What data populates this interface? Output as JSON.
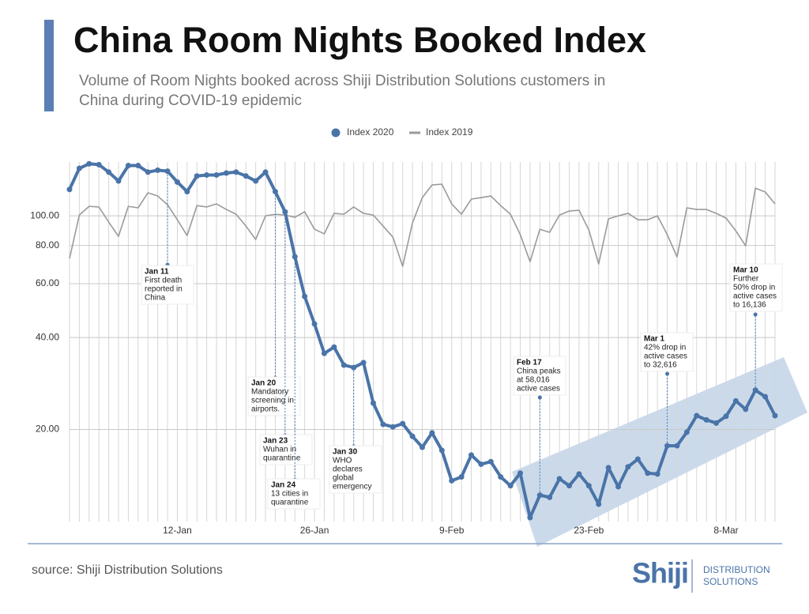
{
  "chart_data": {
    "type": "line",
    "title": "China Room Nights Booked Index",
    "subtitle": [
      "Volume of Room Nights booked across Shiji Distribution Solutions customers in",
      "China during COVID-19 epidemic"
    ],
    "categories": [
      null,
      null,
      null,
      null,
      null,
      null,
      null,
      null,
      null,
      null,
      null,
      "12-Jan",
      null,
      null,
      null,
      null,
      null,
      null,
      null,
      null,
      null,
      null,
      null,
      null,
      null,
      "26-Jan",
      null,
      null,
      null,
      null,
      null,
      null,
      null,
      null,
      null,
      null,
      null,
      null,
      null,
      "9-Feb",
      null,
      null,
      null,
      null,
      null,
      null,
      null,
      null,
      null,
      null,
      null,
      null,
      null,
      "23-Feb",
      null,
      null,
      null,
      null,
      null,
      null,
      null,
      null,
      null,
      null,
      null,
      null,
      null,
      "8-Mar",
      null,
      null,
      null,
      null,
      null
    ],
    "series": [
      {
        "name": "Index 2020",
        "color": "#4a74a8",
        "markers": true,
        "values": [
          122,
          143,
          148,
          147,
          139,
          130,
          146,
          146,
          139,
          141,
          140,
          129,
          120,
          135,
          136,
          136,
          138,
          139,
          135,
          130,
          139,
          120,
          103,
          73.5,
          54.5,
          44.3,
          35.5,
          37.2,
          32.5,
          31.9,
          33.1,
          24.4,
          20.8,
          20.4,
          20.9,
          19.0,
          17.5,
          19.5,
          17.1,
          13.6,
          14.0,
          16.5,
          15.4,
          15.7,
          14.0,
          13.1,
          14.4,
          10.3,
          12.2,
          12.0,
          13.8,
          13.1,
          14.3,
          13.1,
          11.4,
          15.0,
          13.0,
          15.1,
          16.0,
          14.4,
          14.3,
          17.7,
          17.7,
          19.6,
          22.2,
          21.5,
          21.0,
          22.1,
          24.8,
          23.3,
          26.9,
          25.6,
          22.2
        ]
      },
      {
        "name": "Index 2019",
        "color": "#9a9a9a",
        "markers": false,
        "values": [
          72.5,
          100.6,
          107.4,
          106.9,
          95.4,
          85.7,
          107.4,
          106.2,
          118.9,
          116.1,
          108.7,
          97.1,
          86.2,
          108.0,
          106.9,
          109.4,
          104.9,
          101.2,
          92.6,
          83.7,
          100.0,
          101.2,
          100.6,
          98.9,
          103.1,
          90.4,
          87.3,
          101.9,
          101.2,
          106.9,
          101.9,
          100.6,
          92.6,
          85.2,
          68.4,
          94.8,
          114.7,
          126.2,
          126.9,
          109.4,
          101.2,
          113.4,
          114.7,
          116.1,
          108.0,
          101.2,
          86.8,
          70.8,
          90.4,
          88.3,
          100.6,
          103.7,
          104.3,
          89.9,
          69.6,
          97.7,
          100.0,
          101.9,
          97.1,
          97.1,
          100.0,
          86.8,
          73.4,
          106.2,
          104.9,
          104.9,
          101.9,
          98.3,
          89.3,
          79.8,
          123.2,
          119.6,
          109.4
        ]
      }
    ],
    "ylim": [
      10,
      150
    ],
    "yticks": [
      {
        "value": 20,
        "label": "20.00"
      },
      {
        "value": 40,
        "label": "40.00"
      },
      {
        "value": 60,
        "label": "60.00"
      },
      {
        "value": 80,
        "label": "80.00"
      },
      {
        "value": 100,
        "label": "100.00"
      }
    ],
    "log_scale": true,
    "grid": true,
    "legend": "top",
    "annotations": [
      {
        "title": "Jan 11",
        "lines": [
          "First death",
          "reported in",
          "China"
        ]
      },
      {
        "title": "Jan 20",
        "lines": [
          "Mandatory",
          "screening in",
          "airports."
        ]
      },
      {
        "title": "Jan 23",
        "lines": [
          "Wuhan in",
          "quarantine"
        ]
      },
      {
        "title": "Jan 24",
        "lines": [
          "13 cities in",
          "quarantine"
        ]
      },
      {
        "title": "Jan 30",
        "lines": [
          "WHO",
          "declares",
          "global",
          "emergency"
        ]
      },
      {
        "title": "Feb 17",
        "lines": [
          "China peaks",
          "at 58,016",
          "active cases"
        ]
      },
      {
        "title": "Mar 1",
        "lines": [
          "42% drop in",
          "active cases",
          "to 32,616"
        ]
      },
      {
        "title": "Mar 10",
        "lines": [
          "Further",
          "50% drop in",
          "active cases",
          "to 16,136"
        ]
      }
    ]
  },
  "footer": {
    "source": "source: Shiji Distribution Solutions",
    "logo": "Shiji",
    "logo_lines": [
      "DISTRIBUTION",
      "SOLUTIONS"
    ]
  }
}
